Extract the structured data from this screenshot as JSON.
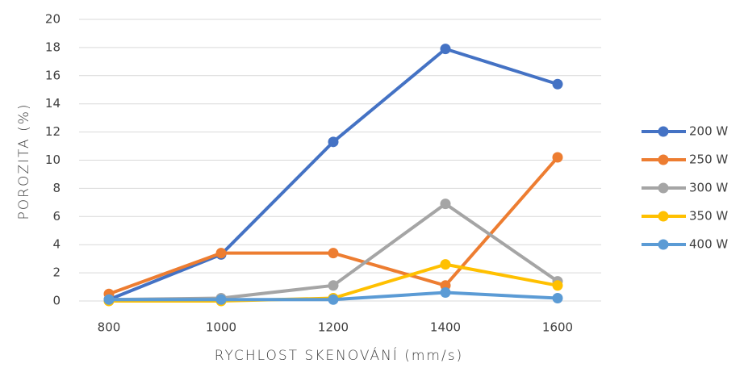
{
  "chart_data": {
    "type": "line",
    "x_label": "RYCHLOST SKENOVÁNÍ (mm/s)",
    "y_label": "POROZITA (%)",
    "categories": [
      "800",
      "1000",
      "1200",
      "1400",
      "1600"
    ],
    "series": [
      {
        "name": "200 W",
        "color": "#4472c4",
        "values": [
          0.1,
          3.3,
          11.3,
          17.9,
          15.4
        ]
      },
      {
        "name": "250 W",
        "color": "#ed7d31",
        "values": [
          0.5,
          3.4,
          3.4,
          1.1,
          10.2
        ]
      },
      {
        "name": "300 W",
        "color": "#a5a5a5",
        "values": [
          0.1,
          0.2,
          1.1,
          6.9,
          1.4
        ]
      },
      {
        "name": "350 W",
        "color": "#ffc000",
        "values": [
          0.0,
          0.0,
          0.2,
          2.6,
          1.1
        ]
      },
      {
        "name": "400 W",
        "color": "#5b9bd5",
        "values": [
          0.1,
          0.1,
          0.1,
          0.6,
          0.2
        ]
      }
    ],
    "ylim": [
      0,
      20
    ],
    "yticks": [
      0,
      2,
      4,
      6,
      8,
      10,
      12,
      14,
      16,
      18,
      20
    ],
    "grid": true,
    "legend": "right"
  }
}
